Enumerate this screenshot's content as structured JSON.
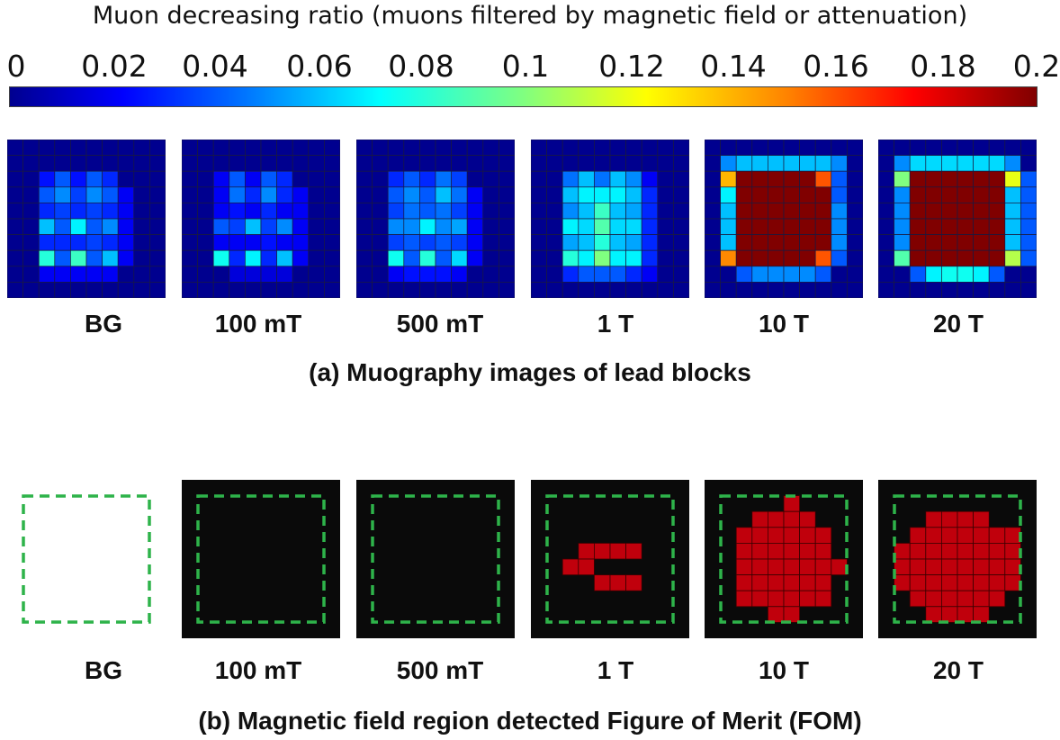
{
  "colorbar": {
    "title": "Muon decreasing ratio (muons filtered by magnetic field or attenuation)",
    "ticks": [
      "0",
      "0.02",
      "0.04",
      "0.06",
      "0.08",
      "0.1",
      "0.12",
      "0.14",
      "0.16",
      "0.18",
      "0.2"
    ],
    "colors": [
      "#00008f",
      "#0000ff",
      "#0080ff",
      "#00ffff",
      "#80ff80",
      "#ffff00",
      "#ff8000",
      "#ff0000",
      "#800000"
    ]
  },
  "panel_a": {
    "caption": "(a) Muography images of lead blocks",
    "labels": [
      "BG",
      "100 mT",
      "500 mT",
      "1 T",
      "10 T",
      "20 T"
    ]
  },
  "panel_b": {
    "caption": "(b) Magnetic field region detected Figure of Merit (FOM)",
    "labels": [
      "BG",
      "100 mT",
      "500 mT",
      "1 T",
      "10 T",
      "20 T"
    ],
    "colors": {
      "background": "#0a0a0a",
      "detected": "#c0000c",
      "outline": "#2eb34a"
    }
  },
  "chart_data": {
    "type": "heatmap",
    "value_range": [
      0,
      0.2
    ],
    "grid": [
      10,
      10
    ],
    "muography": [
      {
        "name": "BG",
        "rows": [
          [
            0,
            0,
            0,
            0,
            0,
            0,
            0,
            0,
            0,
            0
          ],
          [
            0,
            0,
            0,
            0,
            0,
            0,
            0,
            0,
            0,
            0
          ],
          [
            0,
            0,
            0.025,
            0.04,
            0.025,
            0.04,
            0.03,
            0,
            0,
            0
          ],
          [
            0,
            0,
            0.04,
            0.05,
            0.035,
            0.05,
            0.04,
            0.02,
            0,
            0
          ],
          [
            0,
            0,
            0.03,
            0.035,
            0.03,
            0.035,
            0.03,
            0.02,
            0,
            0
          ],
          [
            0,
            0,
            0.06,
            0.04,
            0.07,
            0.04,
            0.05,
            0.02,
            0,
            0
          ],
          [
            0,
            0,
            0.03,
            0.03,
            0.03,
            0.035,
            0.03,
            0.02,
            0,
            0
          ],
          [
            0,
            0,
            0.08,
            0.04,
            0.085,
            0.04,
            0.06,
            0.02,
            0,
            0
          ],
          [
            0,
            0,
            0.02,
            0.02,
            0.02,
            0.02,
            0.02,
            0,
            0,
            0
          ],
          [
            0,
            0,
            0,
            0,
            0,
            0,
            0,
            0,
            0,
            0
          ]
        ]
      },
      {
        "name": "100 mT",
        "rows": [
          [
            0,
            0,
            0,
            0,
            0,
            0,
            0,
            0,
            0,
            0
          ],
          [
            0,
            0,
            0,
            0,
            0,
            0,
            0,
            0,
            0,
            0
          ],
          [
            0,
            0,
            0.02,
            0.04,
            0.02,
            0.04,
            0.03,
            0,
            0,
            0
          ],
          [
            0,
            0,
            0.02,
            0.045,
            0.03,
            0.05,
            0.03,
            0.02,
            0,
            0
          ],
          [
            0,
            0,
            0.02,
            0.025,
            0.02,
            0.03,
            0.02,
            0.02,
            0,
            0
          ],
          [
            0,
            0,
            0.04,
            0.035,
            0.06,
            0.035,
            0.05,
            0.02,
            0,
            0
          ],
          [
            0,
            0,
            0.02,
            0.02,
            0.02,
            0.025,
            0.02,
            0.02,
            0,
            0
          ],
          [
            0,
            0,
            0.075,
            0.03,
            0.07,
            0.03,
            0.06,
            0.02,
            0,
            0
          ],
          [
            0,
            0,
            0,
            0.015,
            0.015,
            0.015,
            0.015,
            0,
            0,
            0
          ],
          [
            0,
            0,
            0,
            0,
            0,
            0,
            0,
            0,
            0,
            0
          ]
        ]
      },
      {
        "name": "500 mT",
        "rows": [
          [
            0,
            0,
            0,
            0,
            0,
            0,
            0,
            0,
            0,
            0
          ],
          [
            0,
            0,
            0,
            0,
            0,
            0,
            0,
            0,
            0,
            0
          ],
          [
            0,
            0,
            0.03,
            0.04,
            0.03,
            0.045,
            0.035,
            0,
            0,
            0
          ],
          [
            0,
            0,
            0.04,
            0.05,
            0.04,
            0.06,
            0.045,
            0.02,
            0,
            0
          ],
          [
            0,
            0,
            0.035,
            0.045,
            0.04,
            0.045,
            0.035,
            0.02,
            0,
            0
          ],
          [
            0,
            0,
            0.05,
            0.05,
            0.07,
            0.05,
            0.055,
            0.02,
            0,
            0
          ],
          [
            0,
            0,
            0.035,
            0.04,
            0.035,
            0.04,
            0.035,
            0.02,
            0,
            0
          ],
          [
            0,
            0,
            0.075,
            0.04,
            0.08,
            0.04,
            0.065,
            0.02,
            0,
            0
          ],
          [
            0,
            0,
            0.02,
            0.025,
            0.025,
            0.025,
            0.02,
            0,
            0,
            0
          ],
          [
            0,
            0,
            0,
            0,
            0,
            0,
            0,
            0,
            0,
            0
          ]
        ]
      },
      {
        "name": "1 T",
        "rows": [
          [
            0,
            0,
            0,
            0,
            0,
            0,
            0,
            0,
            0,
            0
          ],
          [
            0,
            0,
            0,
            0,
            0,
            0,
            0,
            0,
            0,
            0
          ],
          [
            0,
            0,
            0.045,
            0.06,
            0.045,
            0.06,
            0.05,
            0.02,
            0,
            0
          ],
          [
            0,
            0,
            0.06,
            0.07,
            0.07,
            0.07,
            0.06,
            0.03,
            0,
            0
          ],
          [
            0,
            0,
            0.05,
            0.06,
            0.085,
            0.06,
            0.055,
            0.03,
            0,
            0
          ],
          [
            0,
            0,
            0.07,
            0.065,
            0.09,
            0.065,
            0.065,
            0.03,
            0,
            0
          ],
          [
            0,
            0,
            0.055,
            0.06,
            0.08,
            0.06,
            0.055,
            0.03,
            0,
            0
          ],
          [
            0,
            0,
            0.08,
            0.07,
            0.1,
            0.07,
            0.07,
            0.03,
            0,
            0
          ],
          [
            0,
            0,
            0.03,
            0.04,
            0.04,
            0.04,
            0.03,
            0.02,
            0,
            0
          ],
          [
            0,
            0,
            0,
            0,
            0,
            0,
            0,
            0,
            0,
            0
          ]
        ]
      },
      {
        "name": "10 T",
        "rows": [
          [
            0,
            0,
            0,
            0,
            0,
            0,
            0,
            0,
            0,
            0
          ],
          [
            0,
            0.05,
            0.06,
            0.06,
            0.06,
            0.06,
            0.06,
            0.06,
            0.05,
            0
          ],
          [
            0,
            0.14,
            0.2,
            0.2,
            0.2,
            0.2,
            0.2,
            0.16,
            0.04,
            0
          ],
          [
            0,
            0.07,
            0.2,
            0.2,
            0.2,
            0.2,
            0.2,
            0.2,
            0.04,
            0
          ],
          [
            0,
            0.06,
            0.2,
            0.2,
            0.2,
            0.2,
            0.2,
            0.2,
            0.05,
            0
          ],
          [
            0,
            0.06,
            0.2,
            0.2,
            0.2,
            0.2,
            0.2,
            0.2,
            0.05,
            0
          ],
          [
            0,
            0.06,
            0.2,
            0.2,
            0.2,
            0.2,
            0.2,
            0.2,
            0.05,
            0
          ],
          [
            0,
            0.15,
            0.2,
            0.2,
            0.2,
            0.2,
            0.2,
            0.16,
            0.04,
            0
          ],
          [
            0,
            0,
            0.04,
            0.05,
            0.05,
            0.05,
            0.05,
            0.04,
            0,
            0
          ],
          [
            0,
            0,
            0,
            0,
            0,
            0,
            0,
            0,
            0,
            0
          ]
        ]
      },
      {
        "name": "20 T",
        "rows": [
          [
            0,
            0,
            0,
            0,
            0,
            0,
            0,
            0,
            0,
            0
          ],
          [
            0,
            0.05,
            0.065,
            0.065,
            0.065,
            0.065,
            0.065,
            0.065,
            0.05,
            0
          ],
          [
            0,
            0.1,
            0.2,
            0.2,
            0.2,
            0.2,
            0.2,
            0.2,
            0.12,
            0.04
          ],
          [
            0,
            0.05,
            0.2,
            0.2,
            0.2,
            0.2,
            0.2,
            0.2,
            0.06,
            0.04
          ],
          [
            0,
            0.05,
            0.2,
            0.2,
            0.2,
            0.2,
            0.2,
            0.2,
            0.06,
            0.04
          ],
          [
            0,
            0.05,
            0.2,
            0.2,
            0.2,
            0.2,
            0.2,
            0.2,
            0.06,
            0.04
          ],
          [
            0,
            0.05,
            0.2,
            0.2,
            0.2,
            0.2,
            0.2,
            0.2,
            0.06,
            0.04
          ],
          [
            0,
            0.09,
            0.2,
            0.2,
            0.2,
            0.2,
            0.2,
            0.2,
            0.11,
            0.04
          ],
          [
            0,
            0,
            0.04,
            0.07,
            0.075,
            0.075,
            0.07,
            0.04,
            0,
            0
          ],
          [
            0,
            0,
            0,
            0,
            0,
            0,
            0,
            0,
            0,
            0
          ]
        ]
      }
    ],
    "fom_detected": [
      {
        "name": "BG",
        "cells": [],
        "has_background": false
      },
      {
        "name": "100 mT",
        "cells": [],
        "has_background": true
      },
      {
        "name": "500 mT",
        "cells": [],
        "has_background": true
      },
      {
        "name": "1 T",
        "cells": [
          [
            4,
            3
          ],
          [
            4,
            4
          ],
          [
            4,
            5
          ],
          [
            4,
            6
          ],
          [
            5,
            2
          ],
          [
            5,
            3
          ],
          [
            6,
            4
          ],
          [
            6,
            5
          ],
          [
            6,
            6
          ]
        ],
        "has_background": true
      },
      {
        "name": "10 T",
        "cells": [
          [
            1,
            5
          ],
          [
            2,
            3
          ],
          [
            2,
            4
          ],
          [
            2,
            5
          ],
          [
            2,
            6
          ],
          [
            3,
            2
          ],
          [
            3,
            3
          ],
          [
            3,
            4
          ],
          [
            3,
            5
          ],
          [
            3,
            6
          ],
          [
            3,
            7
          ],
          [
            4,
            2
          ],
          [
            4,
            3
          ],
          [
            4,
            4
          ],
          [
            4,
            5
          ],
          [
            4,
            6
          ],
          [
            4,
            7
          ],
          [
            5,
            2
          ],
          [
            5,
            3
          ],
          [
            5,
            4
          ],
          [
            5,
            5
          ],
          [
            5,
            6
          ],
          [
            5,
            7
          ],
          [
            5,
            8
          ],
          [
            6,
            2
          ],
          [
            6,
            3
          ],
          [
            6,
            4
          ],
          [
            6,
            5
          ],
          [
            6,
            6
          ],
          [
            6,
            7
          ],
          [
            7,
            2
          ],
          [
            7,
            3
          ],
          [
            7,
            4
          ],
          [
            7,
            5
          ],
          [
            7,
            6
          ],
          [
            7,
            7
          ],
          [
            8,
            4
          ],
          [
            8,
            5
          ]
        ],
        "has_background": true
      },
      {
        "name": "20 T",
        "cells": [
          [
            2,
            3
          ],
          [
            2,
            4
          ],
          [
            2,
            5
          ],
          [
            2,
            6
          ],
          [
            3,
            2
          ],
          [
            3,
            3
          ],
          [
            3,
            4
          ],
          [
            3,
            5
          ],
          [
            3,
            6
          ],
          [
            3,
            7
          ],
          [
            3,
            8
          ],
          [
            4,
            1
          ],
          [
            4,
            2
          ],
          [
            4,
            3
          ],
          [
            4,
            4
          ],
          [
            4,
            5
          ],
          [
            4,
            6
          ],
          [
            4,
            7
          ],
          [
            4,
            8
          ],
          [
            5,
            1
          ],
          [
            5,
            2
          ],
          [
            5,
            3
          ],
          [
            5,
            4
          ],
          [
            5,
            5
          ],
          [
            5,
            6
          ],
          [
            5,
            7
          ],
          [
            5,
            8
          ],
          [
            6,
            1
          ],
          [
            6,
            2
          ],
          [
            6,
            3
          ],
          [
            6,
            4
          ],
          [
            6,
            5
          ],
          [
            6,
            6
          ],
          [
            6,
            7
          ],
          [
            6,
            8
          ],
          [
            7,
            2
          ],
          [
            7,
            3
          ],
          [
            7,
            4
          ],
          [
            7,
            5
          ],
          [
            7,
            6
          ],
          [
            7,
            7
          ],
          [
            8,
            3
          ],
          [
            8,
            4
          ],
          [
            8,
            5
          ],
          [
            8,
            6
          ]
        ],
        "has_background": true
      }
    ]
  }
}
